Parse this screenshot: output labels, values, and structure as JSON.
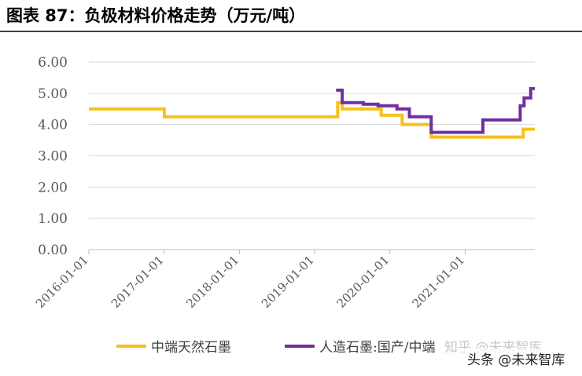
{
  "chart_data": {
    "type": "line",
    "title": "图表 87：负极材料价格走势（万元/吨）",
    "xlim": [
      "2016-01-01",
      "2021-12-05"
    ],
    "xticks": [
      "2016-01-01",
      "2017-01-01",
      "2018-01-01",
      "2019-01-01",
      "2020-01-01",
      "2021-01-01"
    ],
    "ylim": [
      0,
      6
    ],
    "yticks": [
      {
        "value": 0,
        "label": "0.00"
      },
      {
        "value": 1,
        "label": "1.00"
      },
      {
        "value": 2,
        "label": "2.00"
      },
      {
        "value": 3,
        "label": "3.00"
      },
      {
        "value": 4,
        "label": "4.00"
      },
      {
        "value": 5,
        "label": "5.00"
      },
      {
        "value": 6,
        "label": "6.00"
      }
    ],
    "grid": true,
    "legend": "bottom",
    "series": [
      {
        "name": "中端天然石墨",
        "color": "#f5c21b",
        "x": [
          "2016-01-01",
          "2017-01-01",
          "2017-01-01",
          "2019-04-23",
          "2019-04-23",
          "2019-05-15",
          "2019-05-15",
          "2019-11-20",
          "2019-11-20",
          "2020-03-01",
          "2020-03-01",
          "2020-07-20",
          "2020-07-20",
          "2021-10-10",
          "2021-10-10",
          "2021-12-05"
        ],
        "values": [
          4.5,
          4.5,
          4.25,
          4.25,
          4.7,
          4.7,
          4.5,
          4.5,
          4.3,
          4.3,
          4.0,
          4.0,
          3.6,
          3.6,
          3.85,
          3.85
        ]
      },
      {
        "name": "人造石墨:国产/中端",
        "color": "#7030a0",
        "x": [
          "2019-04-15",
          "2019-05-15",
          "2019-05-15",
          "2019-08-25",
          "2019-08-25",
          "2019-11-05",
          "2019-11-05",
          "2020-02-05",
          "2020-02-05",
          "2020-04-05",
          "2020-04-05",
          "2020-07-20",
          "2020-07-20",
          "2021-03-28",
          "2021-03-28",
          "2021-09-25",
          "2021-09-25",
          "2021-10-14",
          "2021-10-14",
          "2021-11-15",
          "2021-11-15",
          "2021-12-05"
        ],
        "values": [
          5.1,
          5.1,
          4.7,
          4.7,
          4.65,
          4.65,
          4.6,
          4.6,
          4.5,
          4.5,
          4.25,
          4.25,
          3.75,
          3.75,
          4.15,
          4.15,
          4.6,
          4.6,
          4.85,
          4.85,
          5.15,
          5.15
        ]
      }
    ],
    "watermarks": [
      "知乎 @未来智库",
      "头条 @未来智库"
    ]
  }
}
